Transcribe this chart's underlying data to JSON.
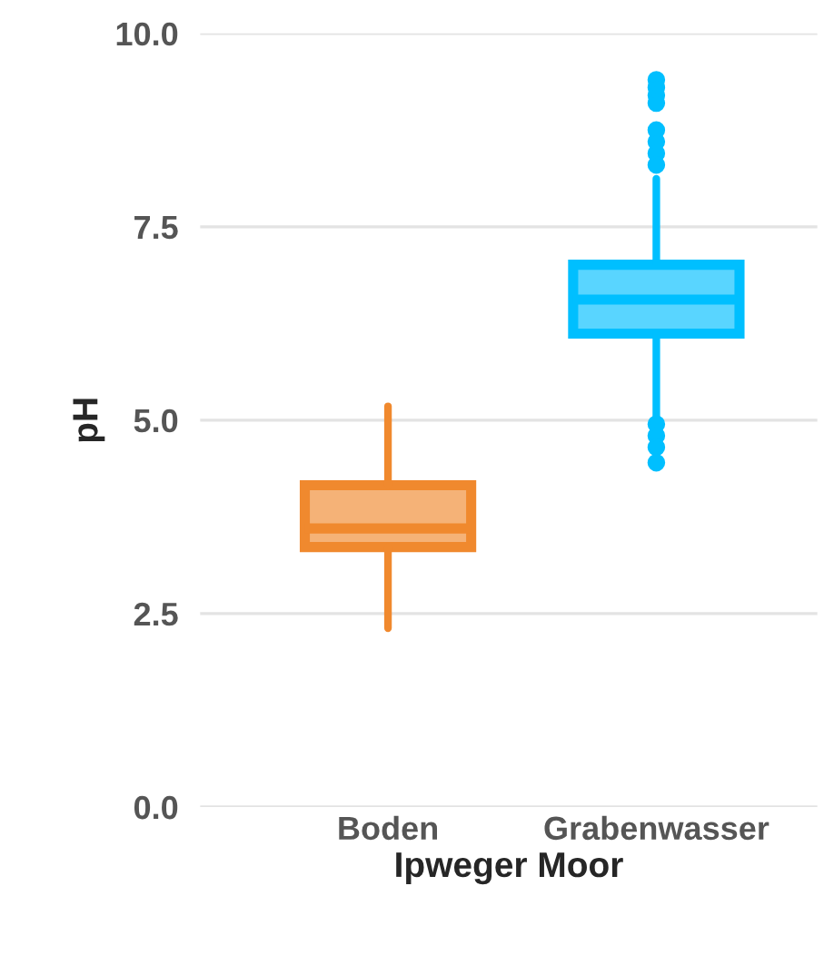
{
  "chart_data": {
    "type": "box",
    "xlabel": "Ipweger Moor",
    "ylabel": "pH",
    "categories": [
      "Boden",
      "Grabenwasser"
    ],
    "colors": [
      "#f0892e",
      "#00bfff"
    ],
    "boxes": [
      {
        "low": 2.31,
        "q1": 3.36,
        "median": 3.6,
        "q3": 4.16,
        "high": 5.18
      },
      {
        "low": 5.04,
        "q1": 6.12,
        "median": 6.56,
        "q3": 7.01,
        "high": 8.12,
        "outliers": [
          9.4,
          9.3,
          9.2,
          9.1,
          8.75,
          8.6,
          8.45,
          8.3,
          4.95,
          4.8,
          4.65,
          4.45
        ]
      }
    ],
    "yticks": [
      {
        "value": 0,
        "label": "0.0"
      },
      2.5,
      {
        "value": 5,
        "label": "5.0"
      },
      7.5,
      {
        "value": 10,
        "label": "10.0"
      }
    ],
    "ylim": [
      0,
      10
    ],
    "grid": "y",
    "legend": false
  }
}
